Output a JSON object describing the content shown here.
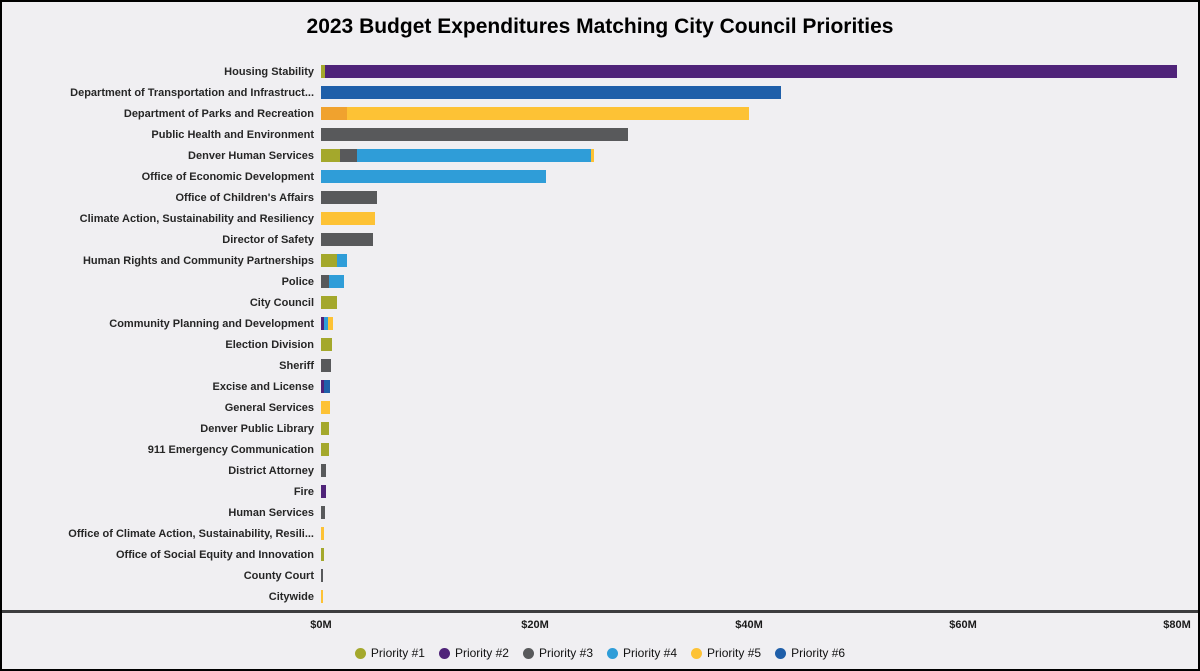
{
  "chart": {
    "title": "2023 Budget Expenditures Matching City Council Priorities"
  },
  "chart_data": {
    "type": "bar",
    "orientation": "horizontal",
    "stacked": true,
    "unit": "USD millions",
    "xlim": [
      0,
      80
    ],
    "grid": false,
    "legend_position": "bottom",
    "x_ticks": [
      {
        "value": 0,
        "label": "$0M"
      },
      {
        "value": 20,
        "label": "$20M"
      },
      {
        "value": 40,
        "label": "$40M"
      },
      {
        "value": 60,
        "label": "$60M"
      },
      {
        "value": 80,
        "label": "$80M"
      }
    ],
    "legend": [
      {
        "name": "Priority #1",
        "color": "#a4a82c"
      },
      {
        "name": "Priority #2",
        "color": "#4f2379"
      },
      {
        "name": "Priority #3",
        "color": "#58595b"
      },
      {
        "name": "Priority #4",
        "color": "#2f9dd8"
      },
      {
        "name": "Priority #5",
        "color": "#fdc235"
      },
      {
        "name": "Priority #6",
        "color": "#1f5fa9"
      }
    ],
    "bars": [
      {
        "category": "Housing Stability",
        "segments": [
          {
            "priority": "Priority #1",
            "value": 0.4
          },
          {
            "priority": "Priority #2",
            "value": 79.6
          }
        ]
      },
      {
        "category": "Department of Transportation and Infrastruct...",
        "segments": [
          {
            "priority": "Priority #6",
            "value": 43.0
          }
        ]
      },
      {
        "category": "Department of Parks and Recreation",
        "segments": [
          {
            "priority": "Priority #5",
            "value": 2.4,
            "color": "#f0a22e"
          },
          {
            "priority": "Priority #5",
            "value": 37.6
          }
        ]
      },
      {
        "category": "Public Health and Environment",
        "segments": [
          {
            "priority": "Priority #3",
            "value": 28.7
          }
        ]
      },
      {
        "category": "Denver Human Services",
        "segments": [
          {
            "priority": "Priority #1",
            "value": 1.8
          },
          {
            "priority": "Priority #3",
            "value": 1.6
          },
          {
            "priority": "Priority #4",
            "value": 21.8
          },
          {
            "priority": "Priority #5",
            "value": 0.3
          }
        ]
      },
      {
        "category": "Office of Economic Development",
        "segments": [
          {
            "priority": "Priority #4",
            "value": 21.0
          }
        ]
      },
      {
        "category": "Office of Children's Affairs",
        "segments": [
          {
            "priority": "Priority #3",
            "value": 5.2
          }
        ]
      },
      {
        "category": "Climate Action, Sustainability and Resiliency",
        "segments": [
          {
            "priority": "Priority #5",
            "value": 5.0
          }
        ]
      },
      {
        "category": "Director of Safety",
        "segments": [
          {
            "priority": "Priority #3",
            "value": 4.9
          }
        ]
      },
      {
        "category": "Human Rights and Community Partnerships",
        "segments": [
          {
            "priority": "Priority #1",
            "value": 1.5
          },
          {
            "priority": "Priority #4",
            "value": 0.9
          }
        ]
      },
      {
        "category": "Police",
        "segments": [
          {
            "priority": "Priority #3",
            "value": 0.7
          },
          {
            "priority": "Priority #4",
            "value": 1.4
          }
        ]
      },
      {
        "category": "City Council",
        "segments": [
          {
            "priority": "Priority #1",
            "value": 1.5
          }
        ]
      },
      {
        "category": "Community Planning and Development",
        "segments": [
          {
            "priority": "Priority #2",
            "value": 0.3
          },
          {
            "priority": "Priority #4",
            "value": 0.4
          },
          {
            "priority": "Priority #5",
            "value": 0.4
          }
        ]
      },
      {
        "category": "Election Division",
        "segments": [
          {
            "priority": "Priority #1",
            "value": 1.0
          }
        ]
      },
      {
        "category": "Sheriff",
        "segments": [
          {
            "priority": "Priority #3",
            "value": 0.9
          }
        ]
      },
      {
        "category": "Excise and License",
        "segments": [
          {
            "priority": "Priority #2",
            "value": 0.3
          },
          {
            "priority": "Priority #6",
            "value": 0.5
          }
        ]
      },
      {
        "category": "General Services",
        "segments": [
          {
            "priority": "Priority #5",
            "value": 0.8
          }
        ]
      },
      {
        "category": "Denver Public Library",
        "segments": [
          {
            "priority": "Priority #1",
            "value": 0.7
          }
        ]
      },
      {
        "category": "911 Emergency Communication",
        "segments": [
          {
            "priority": "Priority #1",
            "value": 0.7
          }
        ]
      },
      {
        "category": "District Attorney",
        "segments": [
          {
            "priority": "Priority #3",
            "value": 0.5
          }
        ]
      },
      {
        "category": "Fire",
        "segments": [
          {
            "priority": "Priority #2",
            "value": 0.5
          }
        ]
      },
      {
        "category": "Human Services",
        "segments": [
          {
            "priority": "Priority #3",
            "value": 0.4
          }
        ]
      },
      {
        "category": "Office of Climate Action, Sustainability, Resili...",
        "segments": [
          {
            "priority": "Priority #5",
            "value": 0.3
          }
        ]
      },
      {
        "category": "Office of Social Equity and Innovation",
        "segments": [
          {
            "priority": "Priority #1",
            "value": 0.3
          }
        ]
      },
      {
        "category": "County Court",
        "segments": [
          {
            "priority": "Priority #3",
            "value": 0.2
          }
        ]
      },
      {
        "category": "Citywide",
        "segments": [
          {
            "priority": "Priority #5",
            "value": 0.2
          }
        ]
      }
    ]
  }
}
